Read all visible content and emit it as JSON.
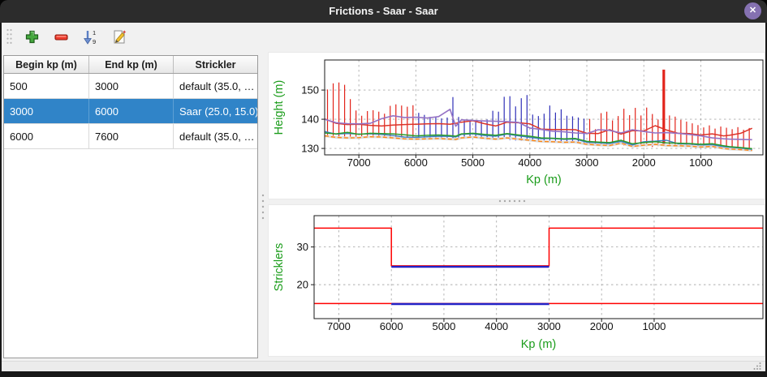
{
  "window": {
    "title": "Frictions - Saar - Saar",
    "close_glyph": "✕"
  },
  "toolbar": {
    "buttons": [
      {
        "name": "add-row",
        "icon": "plus-icon"
      },
      {
        "name": "remove-row",
        "icon": "minus-icon"
      },
      {
        "name": "sort-rows",
        "icon": "sort-numeric-icon"
      },
      {
        "name": "edit-row",
        "icon": "edit-pencil-icon"
      }
    ],
    "sort_digit_top": "1",
    "sort_digit_bottom": "9"
  },
  "table": {
    "columns": [
      "Begin kp (m)",
      "End kp (m)",
      "Strickler"
    ],
    "rows": [
      [
        "500",
        "3000",
        "default (35.0, …"
      ],
      [
        "3000",
        "6000",
        "Saar (25.0, 15.0)"
      ],
      [
        "6000",
        "7600",
        "default (35.0, …"
      ]
    ],
    "selected_row_index": 1
  },
  "colors": {
    "titlebar": "#2c2c2c",
    "close_button": "#8571b1",
    "selection": "#3084c8",
    "axis_label_green": "#1a9c1a",
    "spike_red": "#e2231a",
    "spike_blue": "#3030b8",
    "grid": "#aeaeae"
  },
  "chart_data": [
    {
      "type": "line",
      "title": "",
      "xlabel": "Kp (m)",
      "ylabel": "Height (m)",
      "x_inverted": true,
      "grid": true,
      "legend": "none",
      "xlim": [
        7600,
        -90
      ],
      "ylim": [
        127.8,
        160.3
      ],
      "xticks": [
        7000,
        6000,
        5000,
        4000,
        3000,
        2000,
        1000
      ],
      "yticks": [
        130,
        140,
        150
      ],
      "highlight_kp_range": [
        3000,
        6000
      ],
      "spikes_note": "vertical segments [kp, bottom, top, optional width]; blue inside highlight range, red outside",
      "spikes": [
        [
          7550,
          134.4,
          150.2
        ],
        [
          7450,
          134.2,
          152.3
        ],
        [
          7350,
          134.0,
          152.6
        ],
        [
          7250,
          134.1,
          151.8
        ],
        [
          7150,
          133.9,
          146.9
        ],
        [
          7050,
          133.8,
          143.0
        ],
        [
          6950,
          134.0,
          141.2
        ],
        [
          6850,
          133.9,
          142.8
        ],
        [
          6750,
          133.7,
          143.1
        ],
        [
          6650,
          133.8,
          142.6
        ],
        [
          6550,
          133.6,
          141.9
        ],
        [
          6450,
          133.5,
          144.6
        ],
        [
          6350,
          133.4,
          145.1
        ],
        [
          6250,
          133.6,
          144.7
        ],
        [
          6150,
          133.3,
          144.3
        ],
        [
          6050,
          133.2,
          144.8
        ],
        [
          5950,
          133.4,
          142.2
        ],
        [
          5850,
          133.2,
          141.5
        ],
        [
          5750,
          133.3,
          140.8
        ],
        [
          5650,
          133.1,
          140.9
        ],
        [
          5550,
          133.2,
          140.3
        ],
        [
          5450,
          133.0,
          140.6
        ],
        [
          5350,
          133.1,
          147.6
        ],
        [
          5250,
          133.4,
          140.8
        ],
        [
          5150,
          133.6,
          139.6
        ],
        [
          5050,
          133.8,
          139.9
        ],
        [
          4950,
          133.5,
          139.7
        ],
        [
          4850,
          133.2,
          139.4
        ],
        [
          4750,
          133.0,
          139.9
        ],
        [
          4650,
          133.3,
          142.9
        ],
        [
          4550,
          133.5,
          142.6
        ],
        [
          4450,
          133.1,
          147.7
        ],
        [
          4350,
          132.9,
          147.9
        ],
        [
          4250,
          132.7,
          144.4
        ],
        [
          4150,
          132.6,
          147.2
        ],
        [
          4050,
          132.8,
          148.3
        ],
        [
          3950,
          132.5,
          141.6
        ],
        [
          3850,
          132.4,
          141.1
        ],
        [
          3750,
          132.3,
          141.9
        ],
        [
          3650,
          132.2,
          144.7
        ],
        [
          3550,
          132.4,
          142.3
        ],
        [
          3450,
          132.1,
          143.4
        ],
        [
          3350,
          132.0,
          141.2
        ],
        [
          3250,
          132.2,
          141.0
        ],
        [
          3150,
          131.9,
          140.6
        ],
        [
          3050,
          131.8,
          140.2
        ],
        [
          2950,
          131.6,
          140.1
        ],
        [
          2850,
          131.4,
          136.6
        ],
        [
          2750,
          131.2,
          142.1
        ],
        [
          2650,
          131.3,
          142.6
        ],
        [
          2550,
          131.1,
          139.6
        ],
        [
          2450,
          131.5,
          141.1
        ],
        [
          2350,
          131.0,
          143.6
        ],
        [
          2250,
          130.8,
          141.4
        ],
        [
          2150,
          130.6,
          143.9
        ],
        [
          2050,
          130.9,
          141.3
        ],
        [
          1950,
          130.7,
          144.0
        ],
        [
          1850,
          130.5,
          141.8
        ],
        [
          1750,
          130.8,
          139.9
        ],
        [
          1650,
          131.6,
          157.0,
          3.2
        ],
        [
          1550,
          131.4,
          141.3
        ],
        [
          1450,
          131.2,
          140.9
        ],
        [
          1350,
          131.0,
          139.8
        ],
        [
          1250,
          130.8,
          139.2
        ],
        [
          1150,
          130.6,
          138.6
        ],
        [
          1050,
          130.4,
          138.0
        ],
        [
          950,
          130.2,
          137.2
        ],
        [
          850,
          130.5,
          137.9
        ],
        [
          750,
          130.1,
          136.8
        ],
        [
          650,
          129.9,
          137.5
        ],
        [
          550,
          129.8,
          137.1
        ],
        [
          450,
          129.9,
          136.6
        ],
        [
          350,
          129.7,
          137.3
        ],
        [
          250,
          129.8,
          136.4
        ],
        [
          150,
          129.6,
          137.0
        ]
      ],
      "lines_x": [
        7600,
        7400,
        7200,
        7000,
        6800,
        6600,
        6400,
        6200,
        6000,
        5800,
        5600,
        5400,
        5300,
        5200,
        5000,
        4800,
        4600,
        4400,
        4200,
        4000,
        3800,
        3600,
        3400,
        3200,
        3000,
        2800,
        2600,
        2400,
        2200,
        2000,
        1800,
        1600,
        1400,
        1200,
        1000,
        800,
        600,
        500,
        300,
        100
      ],
      "series": [
        {
          "name": "orange-dashed",
          "color": "#ff8714",
          "width": 1.4,
          "dash": "5,3",
          "underlay": "#dcdcdc",
          "y": [
            134.3,
            133.8,
            133.6,
            133.7,
            134.0,
            133.9,
            133.6,
            133.3,
            133.2,
            133.3,
            133.4,
            133.2,
            133.1,
            133.6,
            133.9,
            133.5,
            133.2,
            133.6,
            133.2,
            132.8,
            132.4,
            132.3,
            132.1,
            132.2,
            131.4,
            131.2,
            131.0,
            131.8,
            130.7,
            131.1,
            131.4,
            131.0,
            130.9,
            130.8,
            130.5,
            130.7,
            130.0,
            129.8,
            129.6,
            129.3
          ]
        },
        {
          "name": "steelblue",
          "color": "#3d7fc1",
          "width": 1.4,
          "y": [
            135.8,
            134.9,
            135.1,
            134.9,
            135.0,
            134.8,
            134.4,
            133.9,
            133.8,
            134.0,
            134.2,
            134.1,
            133.9,
            134.8,
            135.0,
            134.4,
            134.2,
            134.9,
            134.3,
            133.8,
            133.3,
            133.4,
            133.1,
            133.2,
            132.1,
            131.9,
            131.7,
            132.4,
            131.2,
            132.3,
            132.5,
            132.8,
            131.6,
            131.5,
            131.2,
            131.3,
            130.6,
            130.4,
            130.1,
            129.7
          ]
        },
        {
          "name": "green",
          "color": "#2a9b2a",
          "width": 1.5,
          "y": [
            135.3,
            135.0,
            135.5,
            134.8,
            135.2,
            135.1,
            135.0,
            134.7,
            134.3,
            134.5,
            134.6,
            134.4,
            134.2,
            135.0,
            135.2,
            134.8,
            134.5,
            135.1,
            134.6,
            134.2,
            133.6,
            133.5,
            133.3,
            133.4,
            132.4,
            132.2,
            132.0,
            132.8,
            131.6,
            132.0,
            132.3,
            131.9,
            131.8,
            131.7,
            131.4,
            131.6,
            130.9,
            130.6,
            130.3,
            129.9
          ]
        },
        {
          "name": "red",
          "color": "#dd3328",
          "width": 1.5,
          "y": [
            140.1,
            138.6,
            138.2,
            138.3,
            137.9,
            137.7,
            138.0,
            138.2,
            138.3,
            138.4,
            138.5,
            138.3,
            138.6,
            139.0,
            139.5,
            138.5,
            137.7,
            139.0,
            138.8,
            138.4,
            136.6,
            136.5,
            136.5,
            136.4,
            135.2,
            135.1,
            136.4,
            134.9,
            136.1,
            136.0,
            137.8,
            136.3,
            135.2,
            135.1,
            134.6,
            135.0,
            134.3,
            134.5,
            135.2,
            136.9
          ]
        },
        {
          "name": "purple",
          "color": "#9572c4",
          "width": 1.6,
          "y": [
            140.0,
            138.8,
            138.5,
            138.4,
            138.6,
            140.2,
            141.2,
            140.6,
            140.7,
            140.4,
            140.9,
            143.4,
            137.6,
            139.8,
            139.6,
            139.4,
            139.3,
            139.2,
            138.9,
            137.0,
            136.5,
            135.9,
            135.7,
            135.3,
            135.1,
            136.4,
            136.2,
            135.3,
            136.4,
            135.8,
            135.3,
            135.4,
            135.2,
            134.8,
            134.3,
            133.6,
            133.3,
            133.2,
            133.1,
            133.0
          ]
        }
      ]
    },
    {
      "type": "line-step",
      "title": "",
      "xlabel": "Kp (m)",
      "ylabel": "Stricklers",
      "x_inverted": true,
      "grid": true,
      "legend": "none",
      "xlim": [
        7470,
        -1070
      ],
      "ylim": [
        11,
        38.3
      ],
      "xticks": [
        7000,
        6000,
        5000,
        4000,
        3000,
        2000,
        1000
      ],
      "yticks": [
        20,
        30
      ],
      "series": [
        {
          "name": "red-main-channel",
          "color": "#ff0000",
          "width": 1.5,
          "x": [
            7470,
            6000,
            6000,
            3000,
            3000,
            -1070
          ],
          "y": [
            35,
            35,
            25,
            25,
            35,
            35
          ]
        },
        {
          "name": "red-floodplain",
          "color": "#ff0000",
          "width": 1.5,
          "x": [
            7470,
            -1070
          ],
          "y": [
            15,
            15
          ]
        },
        {
          "name": "blue-selected-main",
          "color": "#2323c8",
          "width": 2.4,
          "dy": 1.2,
          "x": [
            6000,
            3000
          ],
          "y": [
            25,
            25
          ]
        },
        {
          "name": "blue-selected-floodplain",
          "color": "#2323c8",
          "width": 2.4,
          "dy": 0.6,
          "x": [
            6000,
            3000
          ],
          "y": [
            15,
            15
          ]
        }
      ]
    }
  ]
}
